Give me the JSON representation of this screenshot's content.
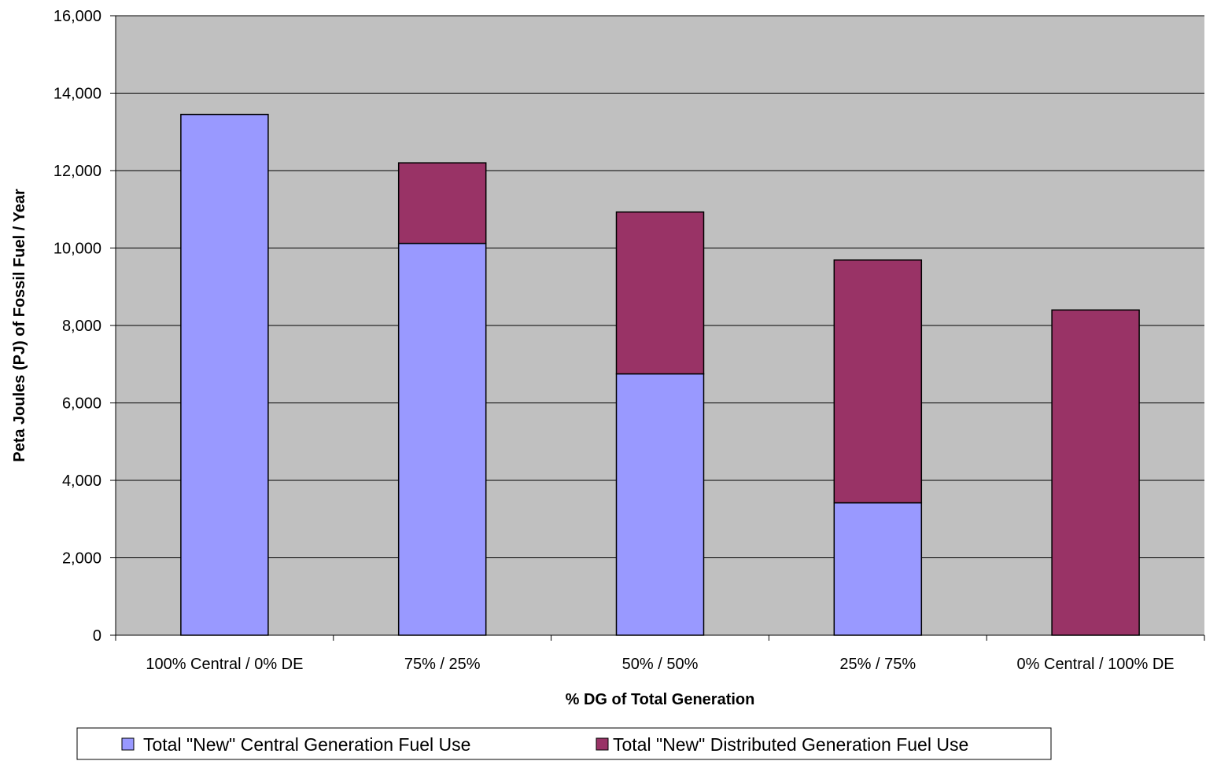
{
  "chart_data": {
    "type": "bar",
    "stacked": true,
    "title": "",
    "xlabel": "% DG of Total Generation",
    "ylabel": "Peta Joules (PJ) of Fossil Fuel / Year",
    "categories": [
      "100% Central / 0% DE",
      "75% / 25%",
      "50% / 50%",
      "25% / 75%",
      "0% Central / 100% DE"
    ],
    "series": [
      {
        "name": "Total \"New\" Central Generation Fuel Use",
        "values": [
          13450,
          10120,
          6750,
          3420,
          0
        ],
        "color": "#9999ff"
      },
      {
        "name": "Total \"New\" Distributed Generation Fuel Use",
        "values": [
          0,
          2080,
          4180,
          6270,
          8400
        ],
        "color": "#993366"
      }
    ],
    "ylim": [
      0,
      16000
    ],
    "yticks": [
      0,
      2000,
      4000,
      6000,
      8000,
      10000,
      12000,
      14000,
      16000
    ],
    "ytick_labels": [
      "0",
      "2,000",
      "4,000",
      "6,000",
      "8,000",
      "10,000",
      "12,000",
      "14,000",
      "16,000"
    ],
    "grid": true,
    "plot_background": "#c0c0c0",
    "legend_position": "bottom"
  }
}
